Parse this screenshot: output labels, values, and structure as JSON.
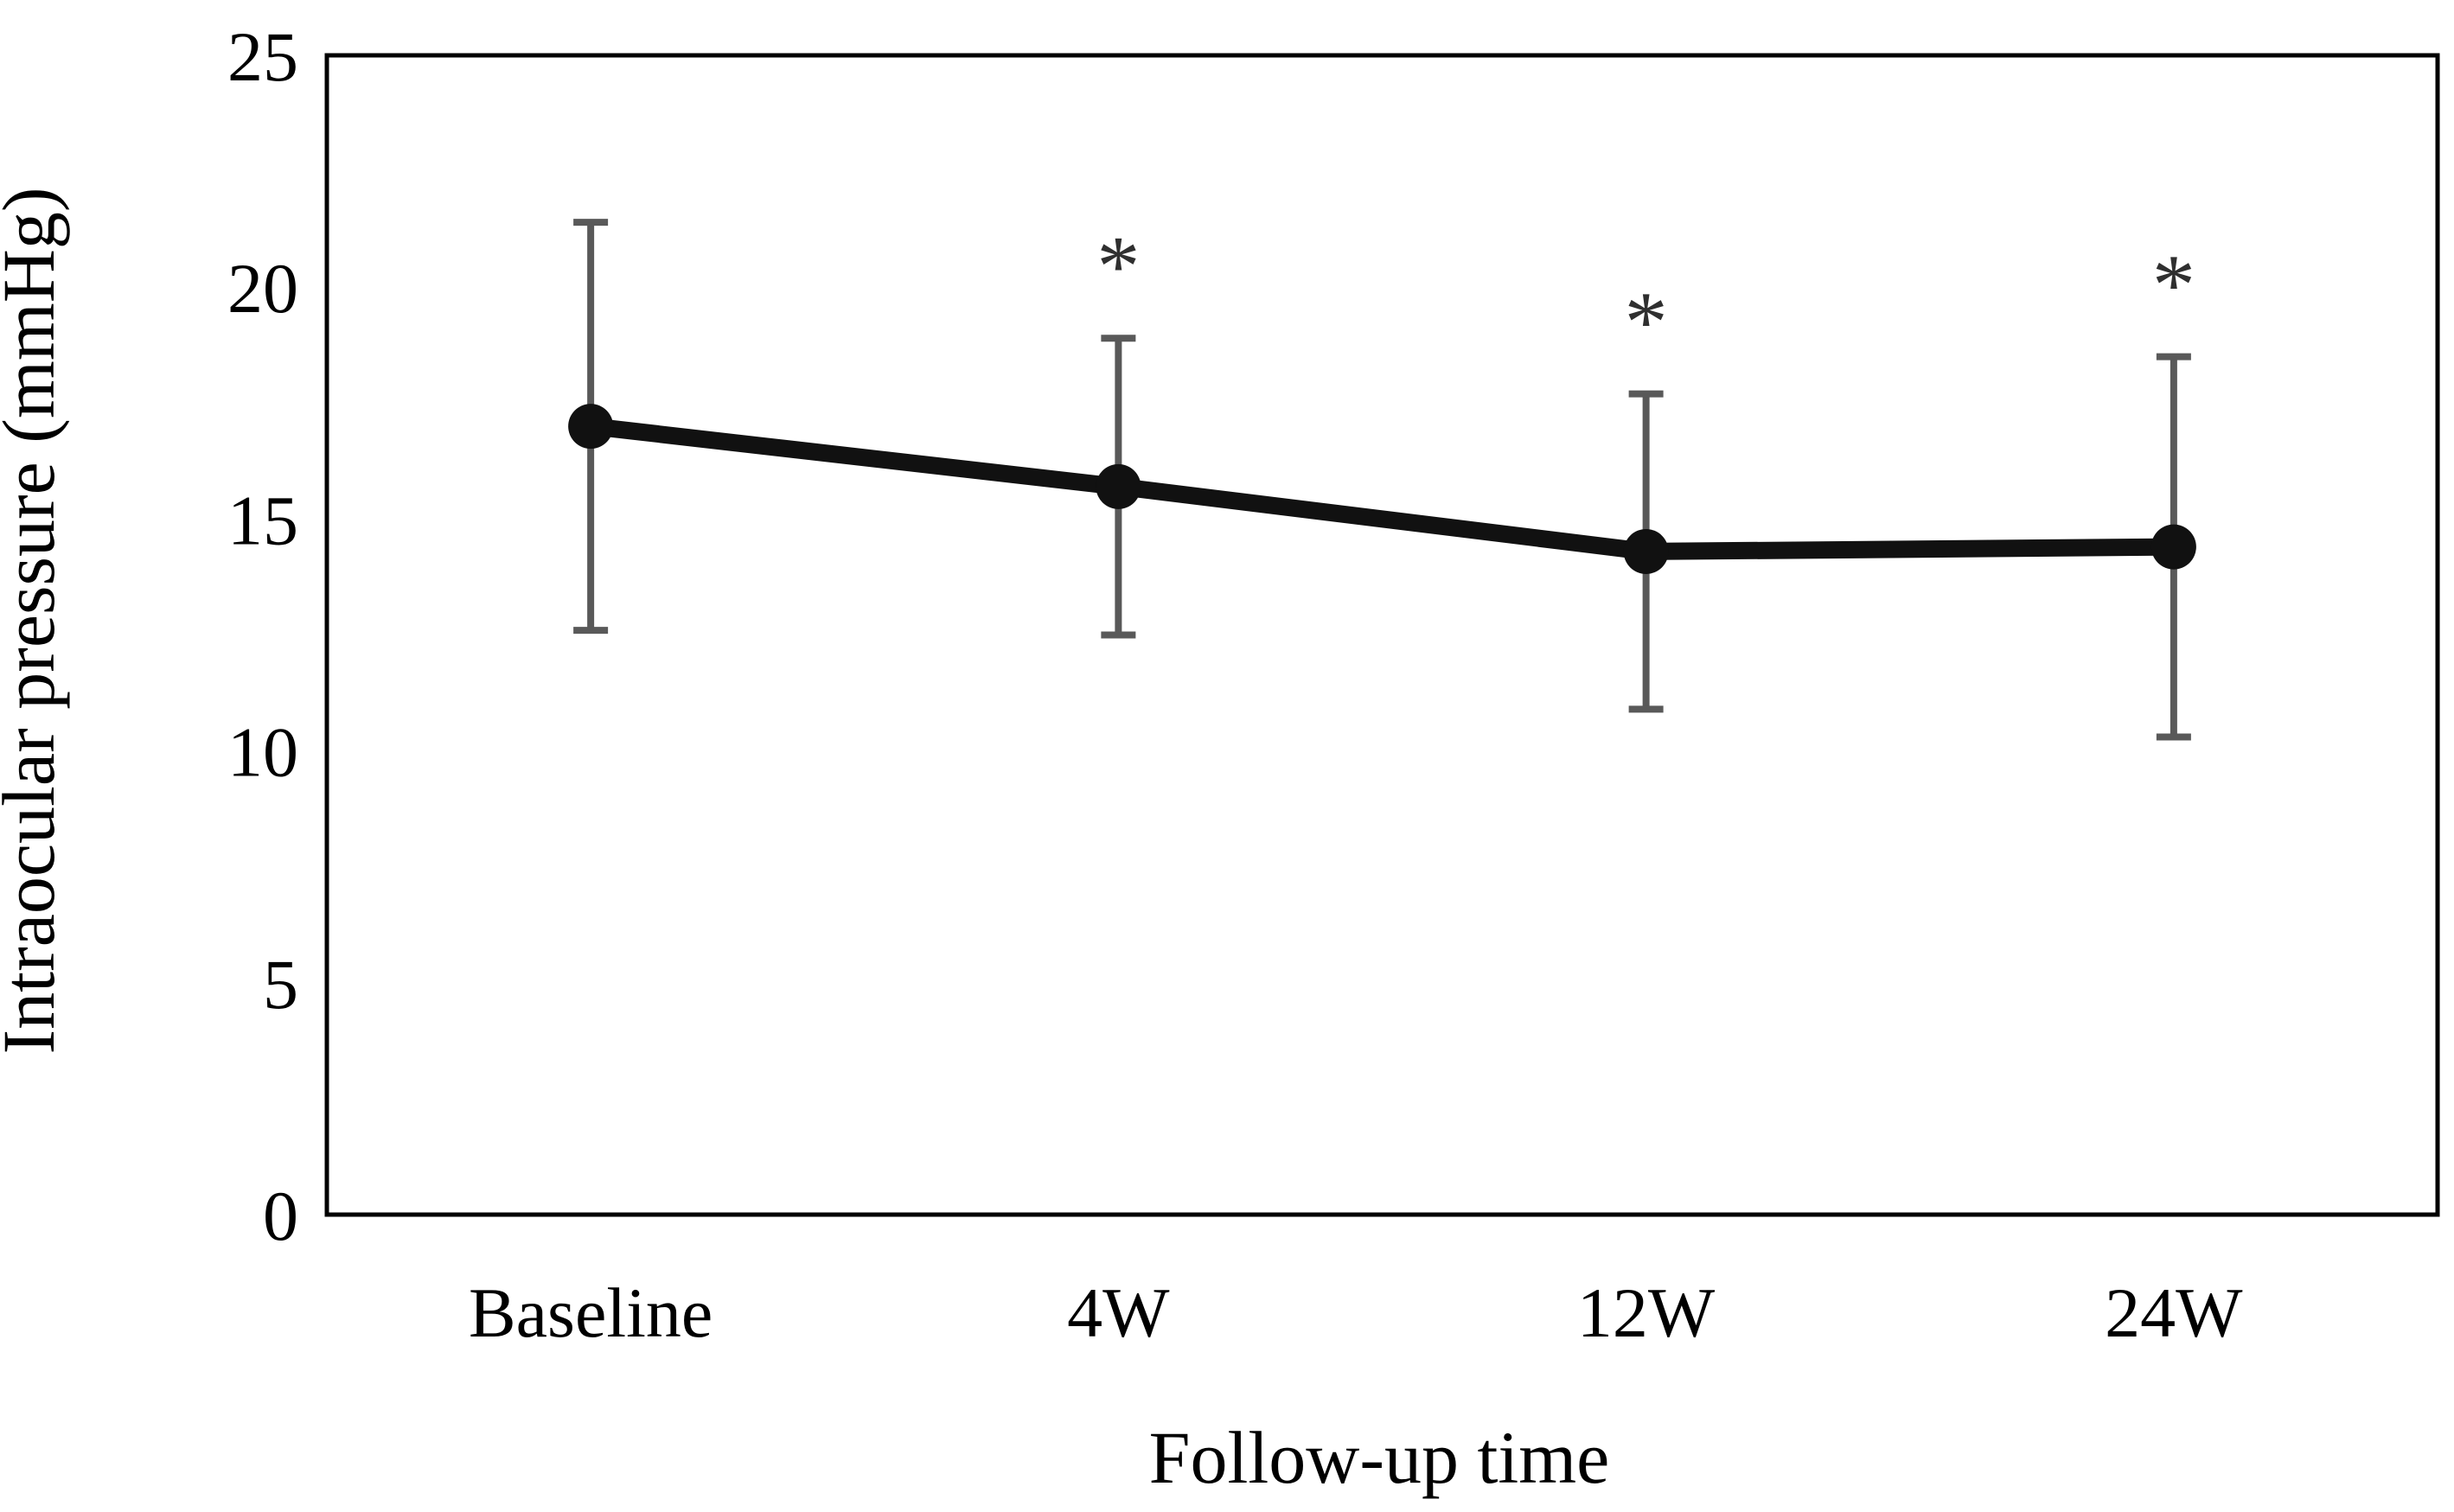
{
  "figure": {
    "background": "#ffffff",
    "text_color": "#000000",
    "series_color": "#111111",
    "error_bar_color": "#595959"
  },
  "chart_data": {
    "type": "line",
    "title": "",
    "xlabel": "Follow-up time",
    "ylabel": "Intraocular pressure (mmHg)",
    "categories": [
      "Baseline",
      "4W",
      "12W",
      "24W"
    ],
    "values": [
      17.0,
      15.7,
      14.3,
      14.4
    ],
    "error_sd": [
      4.4,
      3.2,
      3.4,
      4.1
    ],
    "ylim": [
      0,
      25
    ],
    "y_tick_labels": [
      "0",
      "5",
      "10",
      "15",
      "20",
      "25"
    ],
    "grid": false,
    "legend_position": "none",
    "significance": {
      "label": "*",
      "marked_categories": [
        "4W",
        "12W",
        "24W"
      ]
    }
  }
}
